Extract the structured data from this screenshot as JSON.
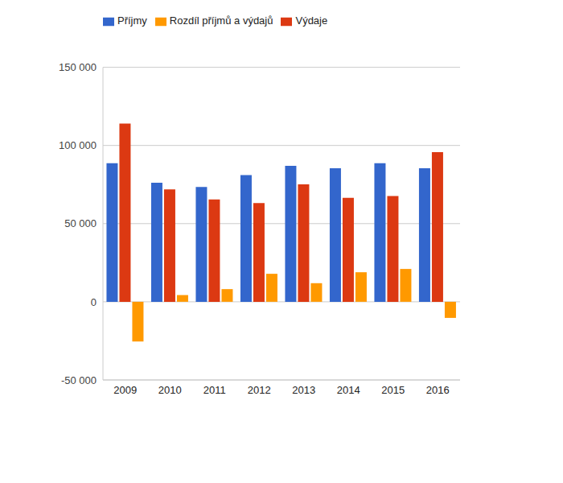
{
  "chart_data": {
    "type": "bar",
    "categories": [
      "2009",
      "2010",
      "2011",
      "2012",
      "2013",
      "2014",
      "2015",
      "2016"
    ],
    "series": [
      {
        "name": "Příjmy",
        "color": "#3366cc",
        "values": [
          88600,
          76200,
          73500,
          81100,
          87000,
          85400,
          88600,
          85400
        ]
      },
      {
        "name": "Výdaje",
        "color": "#dc3912",
        "values": [
          114000,
          71900,
          65400,
          63200,
          75100,
          66500,
          67600,
          95700
        ]
      },
      {
        "name": "Rozdíl příjmů a výdajů",
        "color": "#ff9900",
        "values": [
          -25400,
          4300,
          8100,
          17900,
          11900,
          18900,
          21000,
          -10300
        ]
      }
    ],
    "ylim": [
      -50000,
      150000
    ],
    "yticks": [
      {
        "value": -50000,
        "label": "-50 000"
      },
      0,
      {
        "value": 50000,
        "label": "50 000"
      },
      {
        "value": 100000,
        "label": "100 000"
      },
      {
        "value": 150000,
        "label": "150 000"
      }
    ],
    "grid": true,
    "legend": "top-left"
  }
}
